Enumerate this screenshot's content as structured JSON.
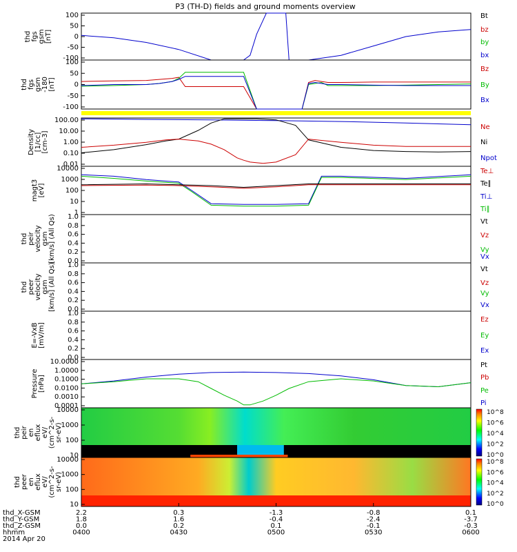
{
  "title": "P3 (TH-D) fields and ground moments overview",
  "colors": {
    "black": "#000000",
    "red": "#cc0000",
    "green": "#00bb00",
    "blue": "#0000cc",
    "yellow": "#ffff00"
  },
  "x_axis": {
    "tick_labels": [
      "0400",
      "0430",
      "0500",
      "0530",
      "0600"
    ],
    "ephemeris": [
      {
        "label": "thd_X-GSM",
        "values": [
          "2.2",
          "0.3",
          "-1.3",
          "-0.8",
          "0.1"
        ]
      },
      {
        "label": "thd_Y-GSM",
        "values": [
          "1.8",
          "1.6",
          "-0.4",
          "-2.4",
          "-3.7"
        ]
      },
      {
        "label": "thd_Z-GSM",
        "values": [
          "0.0",
          "0.2",
          "0.1",
          "-0.1",
          "-0.3"
        ]
      },
      {
        "label": "hhmm",
        "values": [
          "0400",
          "0430",
          "0500",
          "0530",
          "0600"
        ]
      }
    ],
    "date": "2014 Apr 20"
  },
  "chart_data": [
    {
      "type": "line",
      "panel": "fgs_top",
      "ylabel": [
        "thd",
        "fgs",
        "gsm",
        "[nT]"
      ],
      "yticks": [
        "100",
        "50",
        "0",
        "-50",
        "-100"
      ],
      "ylim": [
        -100,
        100
      ],
      "legend": [
        {
          "text": "Bt",
          "color": "#000000"
        },
        {
          "text": "bz",
          "color": "#cc0000"
        },
        {
          "text": "by",
          "color": "#00bb00"
        },
        {
          "text": "bx",
          "color": "#0000cc"
        }
      ],
      "series": [
        {
          "name": "bx",
          "x": [
            0,
            5,
            10,
            15,
            20,
            25,
            26,
            27,
            28.5,
            29,
            30,
            31.5,
            32,
            33,
            34,
            35,
            40,
            45,
            50,
            55,
            60
          ],
          "y": [
            5,
            -5,
            -25,
            -55,
            -100,
            -100,
            -80,
            10,
            100,
            100,
            100,
            100,
            -100,
            -100,
            -100,
            -100,
            -80,
            -40,
            0,
            20,
            30
          ]
        }
      ]
    },
    {
      "type": "line",
      "panel": "fgs_bottom",
      "ylabel": [
        "thd",
        "fgs",
        "gsm",
        "-180",
        "[nT]"
      ],
      "yticks": [
        "100",
        "50",
        "0",
        "-50",
        "-100"
      ],
      "ylim": [
        -120,
        120
      ],
      "legend": [
        {
          "text": "Bz",
          "color": "#cc0000"
        },
        {
          "text": "By",
          "color": "#00bb00"
        },
        {
          "text": "Bx",
          "color": "#0000cc"
        }
      ],
      "series": [
        {
          "name": "Bz",
          "x": [
            0,
            5,
            10,
            12,
            14,
            15,
            16,
            17,
            25,
            27,
            30,
            34,
            35,
            36,
            37,
            38,
            40,
            45,
            50,
            55,
            60
          ],
          "y": [
            15,
            18,
            20,
            25,
            30,
            35,
            -10,
            -10,
            -10,
            -120,
            -120,
            -120,
            10,
            20,
            15,
            10,
            10,
            12,
            12,
            12,
            12
          ]
        },
        {
          "name": "By",
          "x": [
            0,
            5,
            10,
            12,
            14,
            15,
            16,
            17,
            25,
            27,
            30,
            34,
            35,
            36,
            37,
            38,
            40,
            45,
            50,
            55,
            60
          ],
          "y": [
            -8,
            -5,
            0,
            5,
            15,
            30,
            60,
            60,
            60,
            -120,
            -120,
            -120,
            0,
            5,
            10,
            -5,
            -5,
            -5,
            -3,
            0,
            3
          ]
        },
        {
          "name": "Bx",
          "x": [
            0,
            5,
            10,
            12,
            14,
            15,
            16,
            17,
            25,
            27,
            30,
            34,
            35,
            36,
            37,
            38,
            40,
            45,
            50,
            55,
            60
          ],
          "y": [
            -5,
            0,
            0,
            5,
            15,
            25,
            40,
            40,
            40,
            -120,
            -120,
            -120,
            5,
            10,
            5,
            0,
            0,
            -3,
            -5,
            -5,
            -5
          ]
        }
      ]
    },
    {
      "type": "line",
      "panel": "density",
      "ylabel": [
        "Density",
        "[1/cc]",
        "[cm-3]"
      ],
      "yticks": [
        "100.00",
        "10.00",
        "1.00",
        "0.10",
        "0.01"
      ],
      "ylim_log": [
        0.008,
        300
      ],
      "scale": "log",
      "legend": [
        {
          "text": "Ne",
          "color": "#cc0000"
        },
        {
          "text": "Ni",
          "color": "#000000"
        },
        {
          "text": "Npot",
          "color": "#0000cc"
        }
      ],
      "series": [
        {
          "name": "Npot",
          "x": [
            0,
            10,
            20,
            30,
            40,
            50,
            60
          ],
          "y": [
            250,
            220,
            200,
            170,
            140,
            100,
            70
          ]
        },
        {
          "name": "Ni",
          "x": [
            0,
            5,
            10,
            13,
            15,
            18,
            20,
            22,
            25,
            27,
            30,
            33,
            35,
            40,
            45,
            50,
            55,
            60
          ],
          "y": [
            0.15,
            0.3,
            0.9,
            2.0,
            3.0,
            20,
            100,
            250,
            250,
            250,
            200,
            60,
            2.5,
            0.5,
            0.25,
            0.2,
            0.18,
            0.2
          ]
        },
        {
          "name": "Ne",
          "x": [
            0,
            5,
            10,
            13,
            15,
            18,
            20,
            22,
            24,
            25,
            26,
            28,
            30,
            33,
            35,
            40,
            45,
            50,
            55,
            60
          ],
          "y": [
            0.5,
            0.8,
            1.5,
            2.5,
            3.0,
            2.0,
            1.0,
            0.3,
            0.05,
            0.03,
            0.02,
            0.015,
            0.02,
            0.1,
            3.0,
            1.5,
            0.8,
            0.6,
            0.6,
            0.6
          ]
        }
      ]
    },
    {
      "type": "line",
      "panel": "temperature",
      "ylabel": [
        "magt3",
        "[eV]"
      ],
      "yticks": [
        "10000",
        "1000",
        "100",
        "10",
        "1"
      ],
      "ylim_log": [
        1,
        10000
      ],
      "scale": "log",
      "legend": [
        {
          "text": "Te⊥",
          "color": "#cc0000"
        },
        {
          "text": "Te∥",
          "color": "#000000"
        },
        {
          "text": "Ti⊥",
          "color": "#0000cc"
        },
        {
          "text": "Ti∥",
          "color": "#00bb00"
        }
      ],
      "series": [
        {
          "name": "Ti⊥",
          "x": [
            0,
            5,
            10,
            15,
            17,
            20,
            25,
            30,
            35,
            37,
            40,
            50,
            60
          ],
          "y": [
            2000,
            1500,
            800,
            500,
            100,
            8,
            7,
            7,
            8,
            1500,
            1500,
            1000,
            2000
          ]
        },
        {
          "name": "Ti∥",
          "x": [
            0,
            5,
            10,
            15,
            17,
            20,
            25,
            30,
            35,
            37,
            40,
            50,
            60
          ],
          "y": [
            1500,
            1000,
            600,
            400,
            80,
            6,
            5,
            5,
            6,
            1200,
            1200,
            800,
            1500
          ]
        },
        {
          "name": "Te⊥",
          "x": [
            0,
            10,
            15,
            20,
            25,
            30,
            35,
            40,
            50,
            60
          ],
          "y": [
            250,
            280,
            250,
            200,
            150,
            200,
            300,
            300,
            300,
            300
          ]
        },
        {
          "name": "Te∥",
          "x": [
            0,
            10,
            15,
            20,
            25,
            30,
            35,
            40,
            50,
            60
          ],
          "y": [
            300,
            350,
            300,
            250,
            180,
            250,
            350,
            350,
            350,
            350
          ]
        }
      ]
    },
    {
      "type": "line",
      "panel": "peir_velocity",
      "ylabel": [
        "thd",
        "peir",
        "velocity",
        "gsm",
        "[km/s] (All Qs)"
      ],
      "yticks": [
        "1.0",
        "0.8",
        "0.6",
        "0.4",
        "0.2",
        "0.0"
      ],
      "ylim": [
        0,
        1
      ],
      "legend": [
        {
          "text": "Vt",
          "color": "#000000"
        },
        {
          "text": "Vz",
          "color": "#cc0000"
        },
        {
          "text": "Vy",
          "color": "#00bb00"
        },
        {
          "text": "Vx",
          "color": "#0000cc"
        }
      ],
      "series": []
    },
    {
      "type": "line",
      "panel": "peer_velocity",
      "ylabel": [
        "thd",
        "peer",
        "velocity",
        "gsm",
        "[km/s] (All Qs)"
      ],
      "yticks": [
        "1.0",
        "0.8",
        "0.6",
        "0.4",
        "0.2",
        "0.0"
      ],
      "ylim": [
        0,
        1
      ],
      "legend": [
        {
          "text": "Vt",
          "color": "#000000"
        },
        {
          "text": "Vz",
          "color": "#cc0000"
        },
        {
          "text": "Vy",
          "color": "#00bb00"
        },
        {
          "text": "Vx",
          "color": "#0000cc"
        }
      ],
      "series": []
    },
    {
      "type": "line",
      "panel": "efield",
      "ylabel": [
        "E=-VxB",
        "[mV/m]"
      ],
      "yticks": [
        "1.0",
        "0.8",
        "0.6",
        "0.4",
        "0.2",
        "0.0"
      ],
      "ylim": [
        0,
        1
      ],
      "legend": [
        {
          "text": "Ez",
          "color": "#cc0000"
        },
        {
          "text": "Ey",
          "color": "#00bb00"
        },
        {
          "text": "Ex",
          "color": "#0000cc"
        }
      ],
      "series": []
    },
    {
      "type": "line",
      "panel": "pressure",
      "ylabel": [
        "Pressure",
        "[nPa]"
      ],
      "yticks": [
        "10.0000",
        "1.0000",
        "0.1000",
        "0.0100",
        "0.0010",
        "0.0001"
      ],
      "ylim_log": [
        0.0001,
        10
      ],
      "scale": "log",
      "legend": [
        {
          "text": "Pt",
          "color": "#000000"
        },
        {
          "text": "Pb",
          "color": "#cc0000"
        },
        {
          "text": "Pe",
          "color": "#00bb00"
        },
        {
          "text": "Pi",
          "color": "#0000cc"
        }
      ],
      "series": [
        {
          "name": "Pi",
          "x": [
            0,
            5,
            10,
            15,
            20,
            25,
            30,
            35,
            40,
            45,
            50,
            55,
            60
          ],
          "y": [
            0.03,
            0.06,
            0.15,
            0.3,
            0.45,
            0.5,
            0.45,
            0.35,
            0.2,
            0.08,
            0.02,
            0.015,
            0.04
          ]
        },
        {
          "name": "Pe",
          "x": [
            0,
            5,
            10,
            15,
            18,
            20,
            22,
            24,
            25,
            26,
            28,
            30,
            32,
            35,
            40,
            45,
            50,
            55,
            60
          ],
          "y": [
            0.03,
            0.05,
            0.1,
            0.1,
            0.05,
            0.01,
            0.002,
            0.0005,
            0.0002,
            0.0002,
            0.0005,
            0.002,
            0.01,
            0.05,
            0.1,
            0.06,
            0.02,
            0.015,
            0.04
          ]
        }
      ]
    },
    {
      "type": "heatmap",
      "panel": "peir_spectrogram",
      "ylabel": [
        "thd",
        "peir",
        "en",
        "eflux",
        "eV/",
        "(cm^2-s-",
        "sr-eV)"
      ],
      "yticks": [
        "10000",
        "1000",
        "100",
        "10"
      ],
      "colorbar_ticks": [
        "10^8",
        "10^6",
        "10^4",
        "10^2",
        "10^0"
      ]
    },
    {
      "type": "heatmap",
      "panel": "peer_spectrogram",
      "ylabel": [
        "thd",
        "peer",
        "en",
        "eflux",
        "eV/",
        "(cm^2-s-",
        "sr-eV)"
      ],
      "yticks": [
        "10000",
        "1000",
        "100",
        "10"
      ],
      "colorbar_ticks": [
        "10^8",
        "10^6",
        "10^4",
        "10^2",
        "10^0"
      ]
    }
  ]
}
